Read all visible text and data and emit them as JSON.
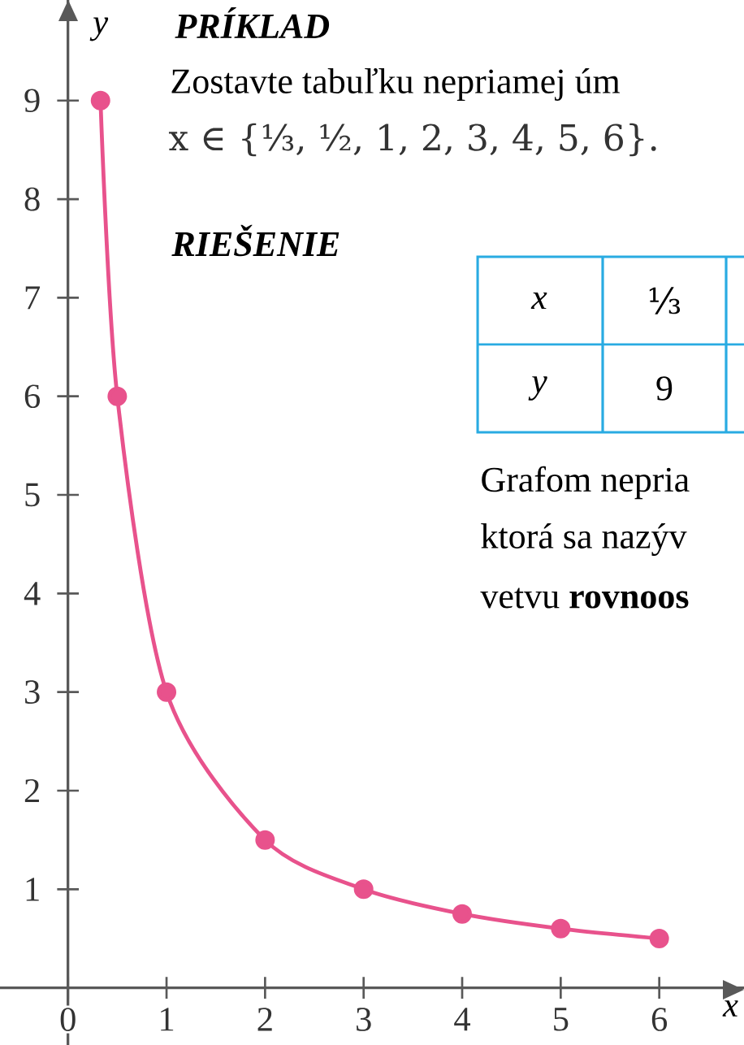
{
  "chart_data": {
    "type": "line",
    "xlabel": "x",
    "ylabel": "y",
    "x": [
      0.33,
      0.5,
      1,
      2,
      3,
      4,
      5,
      6
    ],
    "series": [
      {
        "color": "#e8528c",
        "values": [
          9,
          6,
          3,
          1.5,
          1,
          0.75,
          0.6,
          0.5
        ]
      }
    ],
    "xlim": [
      -0.69,
      6.86
    ],
    "ylim": [
      -0.58,
      10.02
    ],
    "xticks": [
      0,
      1,
      2,
      3,
      4,
      5,
      6
    ],
    "yticks": [
      1,
      2,
      3,
      4,
      5,
      6,
      7,
      8,
      9
    ],
    "marker": "circle",
    "line_style": "solid",
    "annotations": [
      "PRÍKLAD",
      "Zostavte tabuľku nepriamej úm",
      "x ∈ {⅓, ½, 1, 2, 3, 4, 5, 6}.",
      "RIEŠENIE",
      "x",
      "⅓",
      "y",
      "9",
      "Grafom nepria",
      "ktorá sa nazýv",
      "vetvu **rovnoos**"
    ]
  }
}
